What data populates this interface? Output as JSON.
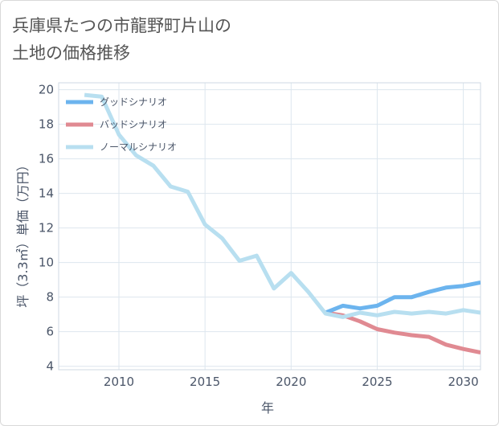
{
  "chart_data": {
    "type": "line",
    "title": "兵庫県たつの市龍野町片山の\n土地の価格推移",
    "xlabel": "年",
    "ylabel": "坪（3.3㎡）単価（万円）",
    "xlim": [
      2006.5,
      2031
    ],
    "ylim": [
      3.8,
      20.4
    ],
    "x_ticks": [
      2010,
      2015,
      2020,
      2025,
      2030
    ],
    "y_ticks": [
      4,
      6,
      8,
      10,
      12,
      14,
      16,
      18,
      20
    ],
    "grid": true,
    "legend_position": "top-left",
    "series": [
      {
        "name": "グッドシナリオ",
        "color": "#6cb4ee",
        "x": [
          2022,
          2023,
          2024,
          2025,
          2026,
          2027,
          2028,
          2029,
          2030,
          2031
        ],
        "y": [
          7.1,
          7.5,
          7.35,
          7.5,
          8.0,
          8.0,
          8.3,
          8.55,
          8.65,
          8.85
        ]
      },
      {
        "name": "バッドシナリオ",
        "color": "#e08a92",
        "x": [
          2022,
          2023,
          2024,
          2025,
          2026,
          2027,
          2028,
          2029,
          2030,
          2031
        ],
        "y": [
          7.1,
          6.95,
          6.6,
          6.15,
          5.95,
          5.8,
          5.7,
          5.25,
          5.0,
          4.8
        ]
      },
      {
        "name": "ノーマルシナリオ",
        "color": "#b8dff0",
        "x": [
          2008,
          2009,
          2010,
          2011,
          2012,
          2013,
          2014,
          2015,
          2016,
          2017,
          2018,
          2019,
          2020,
          2021,
          2022,
          2023,
          2024,
          2025,
          2026,
          2027,
          2028,
          2029,
          2030,
          2031
        ],
        "y": [
          19.7,
          19.6,
          17.4,
          16.2,
          15.6,
          14.4,
          14.1,
          12.2,
          11.4,
          10.1,
          10.4,
          8.5,
          9.4,
          8.3,
          7.05,
          6.85,
          7.1,
          6.95,
          7.15,
          7.05,
          7.15,
          7.05,
          7.25,
          7.1
        ]
      }
    ]
  }
}
